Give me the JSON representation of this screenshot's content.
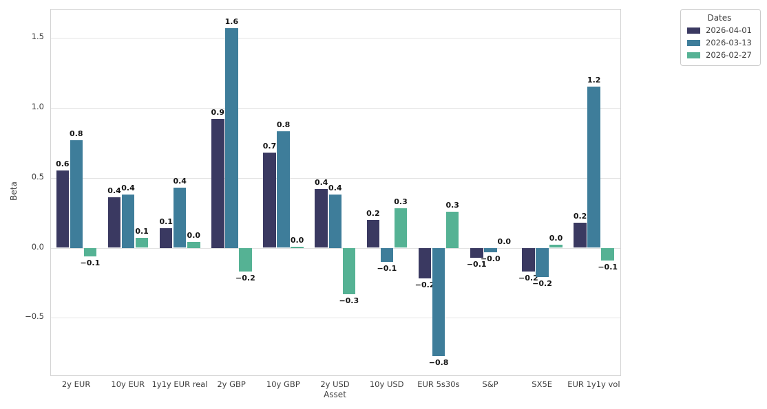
{
  "chart_data": {
    "type": "bar",
    "title": "",
    "xlabel": "Asset",
    "ylabel": "Beta",
    "categories": [
      "2y EUR",
      "10y EUR",
      "1y1y EUR real",
      "2y GBP",
      "10y GBP",
      "2y USD",
      "10y USD",
      "EUR 5s30s",
      "S&P",
      "SX5E",
      "EUR 1y1y vol"
    ],
    "series": [
      {
        "name": "2026-04-01",
        "color": "#3a3961",
        "values": [
          0.55,
          0.36,
          0.14,
          0.92,
          0.68,
          0.42,
          0.2,
          -0.22,
          -0.07,
          -0.17,
          0.18
        ],
        "bar_labels": [
          "0.6",
          "0.4",
          "0.1",
          "0.9",
          "0.7",
          "0.4",
          "0.2",
          "−0.2",
          "−0.1",
          "−0.2",
          "0.2"
        ]
      },
      {
        "name": "2026-03-13",
        "color": "#3e7d9a",
        "values": [
          0.77,
          0.38,
          0.43,
          1.57,
          0.83,
          0.38,
          -0.1,
          -0.77,
          -0.03,
          -0.21,
          1.15
        ],
        "bar_labels": [
          "0.8",
          "0.4",
          "0.4",
          "1.6",
          "0.8",
          "0.4",
          "−0.1",
          "−0.8",
          "−0.0",
          "−0.2",
          "1.2"
        ]
      },
      {
        "name": "2026-02-27",
        "color": "#55b294",
        "values": [
          -0.06,
          0.07,
          0.04,
          -0.17,
          0.01,
          -0.33,
          0.28,
          0.26,
          0.0,
          0.02,
          -0.09
        ],
        "bar_labels": [
          "−0.1",
          "0.1",
          "0.0",
          "−0.2",
          "0.0",
          "−0.3",
          "0.3",
          "0.3",
          "0.0",
          "0.0",
          "−0.1"
        ]
      }
    ],
    "legend": {
      "title": "Dates",
      "position": "outside-top-right"
    },
    "yticks": [
      {
        "value": 1.5,
        "label": "1.5"
      },
      {
        "value": 1.0,
        "label": "1.0"
      },
      {
        "value": 0.5,
        "label": "0.5"
      },
      {
        "value": 0.0,
        "label": "0.0"
      },
      {
        "value": -0.5,
        "label": "−0.5"
      }
    ],
    "ylim": [
      -0.91,
      1.7
    ],
    "grid": "horizontal"
  }
}
